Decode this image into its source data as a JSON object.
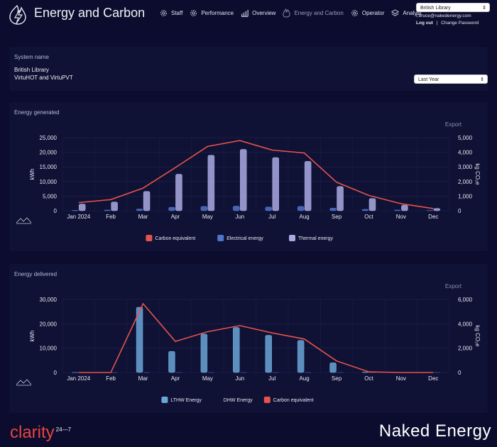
{
  "header": {
    "app_title": "Energy and Carbon",
    "nav": [
      {
        "label": "Staff",
        "icon": "gear-icon"
      },
      {
        "label": "Performance",
        "icon": "gear-icon"
      },
      {
        "label": "Overview",
        "icon": "bar-chart-icon"
      },
      {
        "label": "Energy and Carbon",
        "icon": "gear-icon"
      },
      {
        "label": "Operator",
        "icon": "gear-icon"
      },
      {
        "label": "Analyst",
        "icon": "gear-icon"
      }
    ],
    "site_select": "British Library",
    "email": "f.bruce@nakedenergy.com",
    "logout": "Log out",
    "separator": "|",
    "change_password": "Change Password"
  },
  "system": {
    "label": "System name",
    "name_line1": "British Library",
    "name_line2": "VirtuHOT and VirtuPVT",
    "period": "Last Year"
  },
  "colors": {
    "carbon": "#e5534b",
    "electrical": "#4f74c9",
    "thermal": "#a9abe0",
    "lthw": "#6ba6d6",
    "dhw": "#3d5aa8"
  },
  "chart_data": [
    {
      "type": "bar",
      "title": "Energy generated",
      "export": "Export",
      "categories": [
        "Jan 2024",
        "Feb",
        "Mar",
        "Apr",
        "May",
        "Jun",
        "Jul",
        "Aug",
        "Sep",
        "Oct",
        "Nov",
        "Dec"
      ],
      "ylabel": "kWh",
      "y2label": "kg CO₂e",
      "ylim": [
        0,
        25000
      ],
      "y2lim": [
        0,
        5000
      ],
      "yticks": [
        "25,000",
        "20,000",
        "15,000",
        "10,000",
        "5,000",
        "0"
      ],
      "y2ticks": [
        "5,000",
        "4,000",
        "3,000",
        "2,000",
        "1,000",
        "0"
      ],
      "series": [
        {
          "name": "Carbon equivalent",
          "kind": "line",
          "axis": "right",
          "values": [
            560,
            760,
            1550,
            2950,
            4400,
            4800,
            4150,
            3950,
            1950,
            1050,
            480,
            150
          ]
        },
        {
          "name": "Electrical energy",
          "kind": "bar",
          "axis": "left",
          "values": [
            150,
            250,
            600,
            1200,
            1500,
            1600,
            1300,
            1500,
            900,
            500,
            250,
            100
          ]
        },
        {
          "name": "Thermal energy",
          "kind": "bar",
          "axis": "left",
          "values": [
            2300,
            3000,
            6600,
            12500,
            19000,
            21000,
            18200,
            16900,
            8300,
            4200,
            1900,
            800
          ]
        }
      ],
      "legend": "bottom-center",
      "grid": true
    },
    {
      "type": "bar",
      "title": "Energy delivered",
      "export": "Export",
      "categories": [
        "Jan 2024",
        "Feb",
        "Mar",
        "Apr",
        "May",
        "Jun",
        "Jul",
        "Aug",
        "Sep",
        "Oct",
        "Nov",
        "Dec"
      ],
      "ylabel": "kWh",
      "y2label": "kg CO₂e",
      "ylim": [
        0,
        30000
      ],
      "y2lim": [
        0,
        6000
      ],
      "yticks": [
        "30,000",
        "20,000",
        "10,000",
        "0"
      ],
      "y2ticks": [
        "6,000",
        "4,000",
        "2,000",
        "0"
      ],
      "series": [
        {
          "name": "LTHW Energy",
          "kind": "bar",
          "axis": "left",
          "values": [
            0,
            0,
            26800,
            8700,
            15800,
            18500,
            15300,
            13200,
            4000,
            200,
            0,
            0
          ]
        },
        {
          "name": "DHW Energy",
          "kind": "bar",
          "axis": "left",
          "values": [
            0,
            0,
            0,
            0,
            0,
            0,
            0,
            0,
            0,
            0,
            0,
            0
          ]
        },
        {
          "name": "Carbon equivalent",
          "kind": "line",
          "axis": "right",
          "values": [
            0,
            0,
            5650,
            2550,
            3350,
            3850,
            3250,
            2750,
            950,
            50,
            0,
            0
          ]
        }
      ],
      "legend": "bottom-center",
      "grid": true
    }
  ],
  "footer": {
    "brand": "clarity",
    "brand_sup": "24—7",
    "company": "Naked Energy"
  }
}
